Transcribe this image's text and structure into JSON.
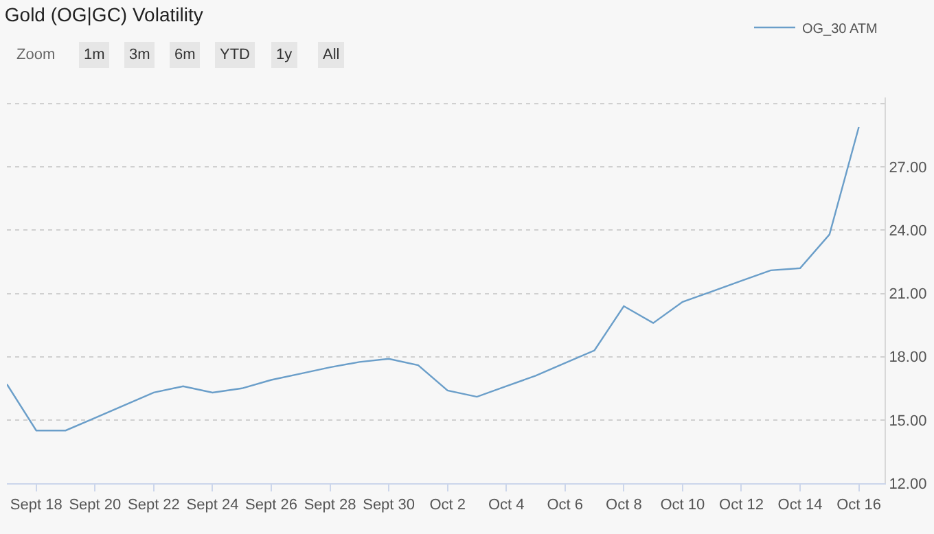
{
  "chart_data": {
    "type": "line",
    "title": "Gold (OG|GC) Volatility",
    "x": [
      "--09-17",
      "--09-18",
      "--09-19",
      "--09-20",
      "--09-21",
      "--09-22",
      "--09-23",
      "--09-24",
      "--09-25",
      "--09-26",
      "--09-27",
      "--09-28",
      "--09-29",
      "--09-30",
      "--10-01",
      "--10-02",
      "--10-03",
      "--10-04",
      "--10-05",
      "--10-06",
      "--10-07",
      "--10-08",
      "--10-09",
      "--10-10",
      "--10-11",
      "--10-12",
      "--10-13",
      "--10-14",
      "--10-15",
      "--10-16"
    ],
    "series": [
      {
        "name": "OG_30 ATM",
        "color": "#6a9ec9",
        "values": [
          16.7,
          14.5,
          14.5,
          15.1,
          15.7,
          16.3,
          16.6,
          16.3,
          16.5,
          16.9,
          17.2,
          17.5,
          17.75,
          17.9,
          17.6,
          16.4,
          16.1,
          16.6,
          17.1,
          17.7,
          18.3,
          20.4,
          19.6,
          20.6,
          21.1,
          21.6,
          22.1,
          22.2,
          23.8,
          28.9
        ]
      }
    ],
    "xlim": [
      "--09-17",
      "--10-16T21:00"
    ],
    "xticks": [
      {
        "value": "--09-18",
        "label": "Sept 18"
      },
      {
        "value": "--09-20",
        "label": "Sept 20"
      },
      {
        "value": "--09-22",
        "label": "Sept 22"
      },
      {
        "value": "--09-24",
        "label": "Sept 24"
      },
      {
        "value": "--09-26",
        "label": "Sept 26"
      },
      {
        "value": "--09-28",
        "label": "Sept 28"
      },
      {
        "value": "--09-30",
        "label": "Sept 30"
      },
      {
        "value": "--10-02",
        "label": "Oct 2"
      },
      {
        "value": "--10-04",
        "label": "Oct 4"
      },
      {
        "value": "--10-06",
        "label": "Oct 6"
      },
      {
        "value": "--10-08",
        "label": "Oct 8"
      },
      {
        "value": "--10-10",
        "label": "Oct 10"
      },
      {
        "value": "--10-12",
        "label": "Oct 12"
      },
      {
        "value": "--10-14",
        "label": "Oct 14"
      },
      {
        "value": "--10-16",
        "label": "Oct 16"
      }
    ],
    "ylim": [
      12,
      30.3
    ],
    "yticks": [
      {
        "value": 12,
        "label": "12.00"
      },
      {
        "value": 15,
        "label": "15.00"
      },
      {
        "value": 18,
        "label": "18.00"
      },
      {
        "value": 21,
        "label": "21.00"
      },
      {
        "value": 24,
        "label": "24.00"
      },
      {
        "value": 27,
        "label": "27.00"
      },
      {
        "value": 30,
        "label": null
      }
    ],
    "grid": "y",
    "legend": "top right",
    "marker": "none",
    "line_style": "solid",
    "annotations": [
      "Zoom",
      "1m",
      "3m",
      "6m",
      "YTD",
      "1y",
      "All"
    ]
  }
}
